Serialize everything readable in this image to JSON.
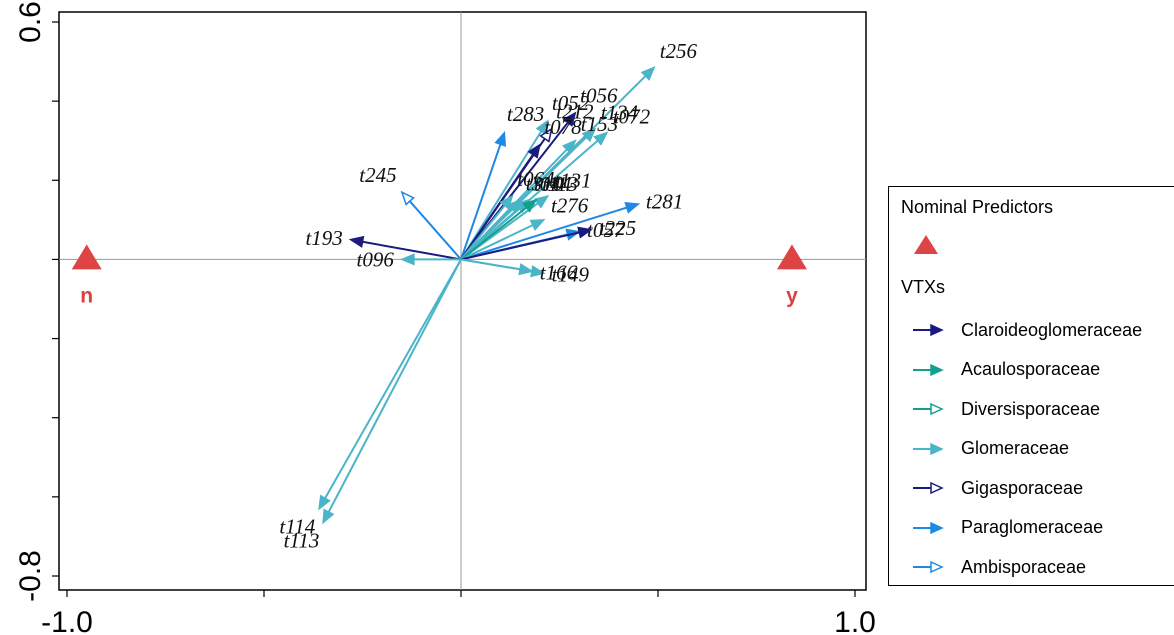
{
  "chart_data": {
    "type": "scatter",
    "xlim": [
      -1.0,
      1.0
    ],
    "ylim": [
      -0.8,
      0.6
    ],
    "x_tick_labels": [
      "-1.0",
      "1.0"
    ],
    "y_tick_labels": [
      "0.6",
      "-0.8"
    ],
    "grid": false,
    "zero_lines": true,
    "predictors": [
      {
        "label": "n",
        "x": -0.95,
        "y": 0.0
      },
      {
        "label": "y",
        "x": 0.84,
        "y": 0.0
      }
    ],
    "vectors": [
      {
        "label": "t256",
        "x": 0.49,
        "y": 0.485,
        "family": "Glomeraceae"
      },
      {
        "label": "t056",
        "x": 0.29,
        "y": 0.37,
        "family": "Claroideoglomeraceae"
      },
      {
        "label": "t052",
        "x": 0.22,
        "y": 0.35,
        "family": "Glomeraceae"
      },
      {
        "label": "t212",
        "x": 0.23,
        "y": 0.33,
        "family": "Gigasporaceae"
      },
      {
        "label": "t134",
        "x": 0.34,
        "y": 0.33,
        "family": "Glomeraceae"
      },
      {
        "label": "t283",
        "x": 0.11,
        "y": 0.32,
        "family": "Paraglomeraceae"
      },
      {
        "label": "t078",
        "x": 0.2,
        "y": 0.29,
        "family": "Claroideoglomeraceae"
      },
      {
        "label": "t153",
        "x": 0.29,
        "y": 0.3,
        "family": "Glomeraceae"
      },
      {
        "label": "t072",
        "x": 0.37,
        "y": 0.32,
        "family": "Glomeraceae"
      },
      {
        "label": "t245",
        "x": -0.15,
        "y": 0.17,
        "family": "Ambisporaceae"
      },
      {
        "label": "t064",
        "x": 0.13,
        "y": 0.16,
        "family": "Glomeraceae"
      },
      {
        "label": "t310",
        "x": 0.15,
        "y": 0.15,
        "family": "Glomeraceae"
      },
      {
        "label": "t044",
        "x": 0.17,
        "y": 0.15,
        "family": "Glomeraceae"
      },
      {
        "label": "t131",
        "x": 0.22,
        "y": 0.16,
        "family": "Glomeraceae"
      },
      {
        "label": "t113",
        "x": 0.19,
        "y": 0.15,
        "family": "Acaulosporaceae"
      },
      {
        "label": "t281",
        "x": 0.45,
        "y": 0.14,
        "family": "Paraglomeraceae"
      },
      {
        "label": "t276",
        "x": 0.21,
        "y": 0.1,
        "family": "Glomeraceae"
      },
      {
        "label": "t193",
        "x": -0.28,
        "y": 0.05,
        "family": "Claroideoglomeraceae"
      },
      {
        "label": "t057",
        "x": 0.3,
        "y": 0.07,
        "family": "Paraglomeraceae"
      },
      {
        "label": "t225",
        "x": 0.33,
        "y": 0.075,
        "family": "Claroideoglomeraceae"
      },
      {
        "label": "t096",
        "x": -0.15,
        "y": 0.0,
        "family": "Glomeraceae"
      },
      {
        "label": "t149",
        "x": 0.21,
        "y": -0.035,
        "family": "Glomeraceae"
      },
      {
        "label": "t166",
        "x": 0.18,
        "y": -0.03,
        "family": "Glomeraceae"
      },
      {
        "label": "t114",
        "x": -0.36,
        "y": -0.63,
        "family": "Glomeraceae"
      },
      {
        "label": "t113",
        "x": -0.35,
        "y": -0.665,
        "family": "Glomeraceae"
      }
    ],
    "legend": {
      "position": "right",
      "predictors_title": "Nominal Predictors",
      "vtx_title": "VTXs",
      "families": [
        {
          "name": "Claroideoglomeraceae",
          "color": "#1a1a80",
          "head": "filled"
        },
        {
          "name": "Acaulosporaceae",
          "color": "#12a08a",
          "head": "filled"
        },
        {
          "name": "Diversisporaceae",
          "color": "#12a08a",
          "head": "open"
        },
        {
          "name": "Glomeraceae",
          "color": "#4ab4c8",
          "head": "filled"
        },
        {
          "name": "Gigasporaceae",
          "color": "#1a1a80",
          "head": "open"
        },
        {
          "name": "Paraglomeraceae",
          "color": "#1e88e5",
          "head": "filled"
        },
        {
          "name": "Ambisporaceae",
          "color": "#1e88e5",
          "head": "open"
        }
      ]
    },
    "predictor_color": "#dd4444"
  }
}
